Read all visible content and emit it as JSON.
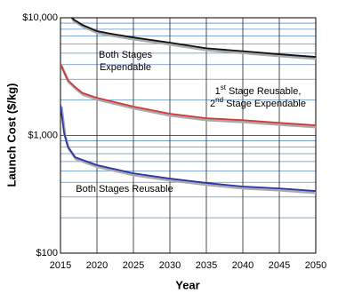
{
  "chart_data": {
    "type": "line",
    "x_label": "Year",
    "y_label": "Launch Cost ($/kg)",
    "xlim": [
      2015,
      2050
    ],
    "xticks": [
      2015,
      2020,
      2025,
      2030,
      2035,
      2040,
      2045,
      2050
    ],
    "ylim": [
      100,
      10000
    ],
    "log_y": true,
    "grid": true,
    "yticks": [
      {
        "value": 100,
        "label": "$100"
      },
      {
        "value": 1000,
        "label": "$1,000"
      },
      {
        "value": 10000,
        "label": "$10,000"
      }
    ],
    "yminor": [
      200,
      300,
      400,
      500,
      600,
      700,
      800,
      900,
      2000,
      3000,
      4000,
      5000,
      6000,
      7000,
      8000,
      9000
    ],
    "series": [
      {
        "name": "Both Stages Expendable",
        "color": "#111111",
        "x": [
          2016.5,
          2017,
          2018,
          2020,
          2022,
          2025,
          2030,
          2035,
          2040,
          2045,
          2050
        ],
        "values": [
          10000,
          9500,
          8700,
          7700,
          7300,
          6800,
          6150,
          5500,
          5200,
          4900,
          4650
        ]
      },
      {
        "name": "1st Stage Reusable, 2nd Stage Expendable",
        "color": "#d03a3a",
        "x": [
          2015,
          2016,
          2017,
          2018,
          2020,
          2025,
          2030,
          2035,
          2040,
          2045,
          2050
        ],
        "values": [
          4050,
          2950,
          2580,
          2300,
          2090,
          1760,
          1530,
          1400,
          1350,
          1280,
          1220
        ]
      },
      {
        "name": "Both Stages Reusable",
        "color": "#2a36a8",
        "x": [
          2015,
          2015.5,
          2016,
          2017,
          2018,
          2020,
          2025,
          2030,
          2035,
          2040,
          2045,
          2050
        ],
        "values": [
          1820,
          1045,
          805,
          653,
          620,
          560,
          477,
          430,
          395,
          368,
          355,
          337
        ]
      }
    ],
    "annotations": [
      {
        "lines": [
          [
            "Both Stages"
          ],
          [
            "Expendable"
          ]
        ]
      },
      {
        "lines": [
          [
            "1",
            "st",
            " Stage Reusable,"
          ],
          [
            "2",
            "nd",
            " Stage Expendable"
          ]
        ]
      },
      {
        "lines": [
          [
            "Both Stages Reusable"
          ]
        ]
      }
    ]
  }
}
